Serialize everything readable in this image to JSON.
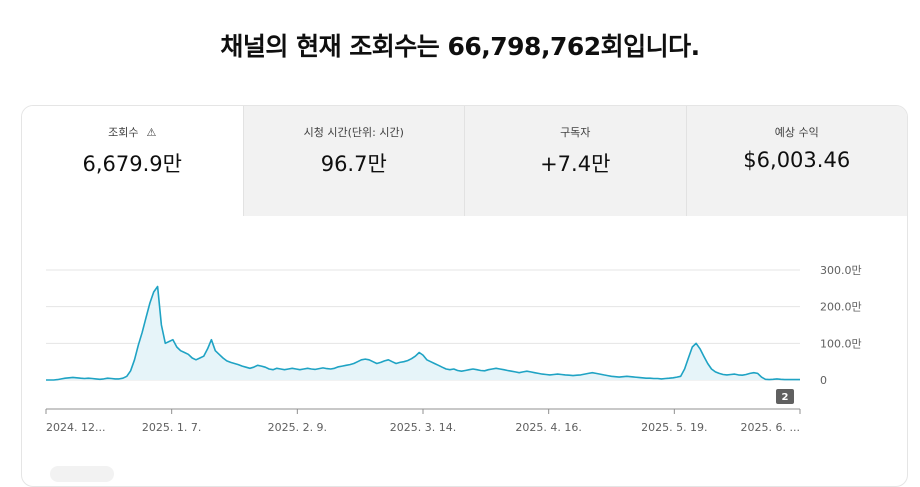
{
  "headline": "채널의 현재 조회수는 66,798,762회입니다.",
  "tabs": [
    {
      "label": "조회수",
      "value": "6,679.9만",
      "icon": "warning-icon",
      "active": true
    },
    {
      "label": "시청 시간(단위: 시간)",
      "value": "96.7만",
      "active": false
    },
    {
      "label": "구독자",
      "value": "+7.4만",
      "active": false
    },
    {
      "label": "예상 수익",
      "value": "$6,003.46",
      "active": false
    }
  ],
  "colors": {
    "line": "#1fa3c4",
    "fill": "#e6f4f9",
    "marker_bg": "#606060"
  },
  "chart_data": {
    "type": "area",
    "x_ticks": [
      "2024. 12...",
      "2025. 1. 7.",
      "2025. 2. 9.",
      "2025. 3. 14.",
      "2025. 4. 16.",
      "2025. 5. 19.",
      "2025. 6. ..."
    ],
    "y_ticks": [
      "300.0만",
      "200.0만",
      "100.0만",
      "0"
    ],
    "ylim": [
      0,
      300
    ],
    "grid": true,
    "marker_label": "2",
    "series": [
      {
        "values": [
          0,
          0,
          0,
          1,
          3,
          5,
          6,
          7,
          6,
          5,
          4,
          5,
          4,
          3,
          2,
          3,
          5,
          4,
          3,
          3,
          5,
          10,
          25,
          55,
          95,
          130,
          170,
          210,
          240,
          255,
          150,
          100,
          105,
          110,
          90,
          80,
          75,
          70,
          60,
          55,
          60,
          65,
          85,
          110,
          80,
          70,
          60,
          52,
          48,
          45,
          42,
          38,
          35,
          32,
          35,
          40,
          38,
          35,
          30,
          28,
          32,
          30,
          28,
          30,
          32,
          30,
          28,
          30,
          32,
          30,
          29,
          31,
          33,
          31,
          30,
          32,
          36,
          38,
          40,
          42,
          45,
          50,
          55,
          57,
          55,
          50,
          45,
          48,
          52,
          55,
          50,
          45,
          48,
          50,
          53,
          58,
          65,
          75,
          68,
          55,
          50,
          45,
          40,
          35,
          30,
          28,
          30,
          26,
          24,
          26,
          28,
          30,
          28,
          26,
          25,
          28,
          30,
          32,
          30,
          28,
          26,
          24,
          22,
          20,
          22,
          24,
          22,
          20,
          18,
          16,
          15,
          14,
          15,
          16,
          15,
          14,
          13,
          12,
          13,
          14,
          16,
          18,
          20,
          18,
          16,
          14,
          12,
          10,
          9,
          8,
          9,
          10,
          9,
          8,
          7,
          6,
          5,
          5,
          4,
          4,
          3,
          4,
          5,
          6,
          8,
          10,
          30,
          60,
          90,
          100,
          85,
          65,
          45,
          30,
          22,
          18,
          15,
          14,
          15,
          16,
          14,
          13,
          15,
          18,
          20,
          18,
          8,
          2,
          1,
          2,
          3,
          2,
          1,
          1,
          1,
          1,
          1
        ]
      }
    ]
  }
}
